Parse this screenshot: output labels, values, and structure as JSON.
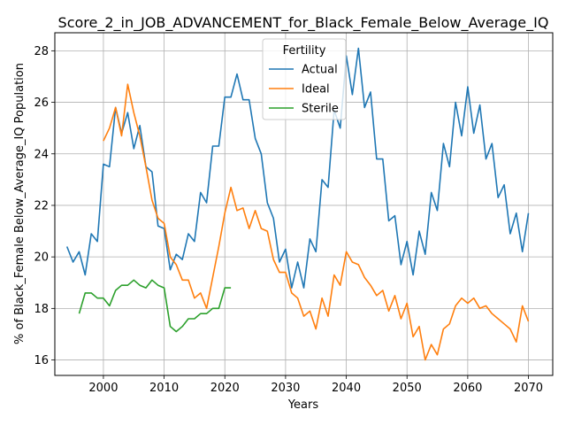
{
  "chart_data": {
    "type": "line",
    "title": "Score_2_in_JOB_ADVANCEMENT_for_Black_Female_Below_Average_IQ",
    "xlabel": "Years",
    "ylabel": "% of Black_Female Below_Average_IQ Population",
    "xlim": [
      1992,
      2074
    ],
    "ylim": [
      15.4,
      28.7
    ],
    "xticks": [
      2000,
      2010,
      2020,
      2030,
      2040,
      2050,
      2060,
      2070
    ],
    "yticks": [
      16,
      18,
      20,
      22,
      24,
      26,
      28
    ],
    "grid": true,
    "legend": {
      "title": "Fertility",
      "placement": "top-center"
    },
    "series": [
      {
        "name": "Actual",
        "color": "#1f77b4",
        "x": [
          1994,
          1995,
          1996,
          1997,
          1998,
          1999,
          2000,
          2001,
          2002,
          2003,
          2004,
          2005,
          2006,
          2007,
          2008,
          2009,
          2010,
          2011,
          2012,
          2013,
          2014,
          2015,
          2016,
          2017,
          2018,
          2019,
          2020,
          2021,
          2022,
          2023,
          2024,
          2025,
          2026,
          2027,
          2028,
          2029,
          2030,
          2031,
          2032,
          2033,
          2034,
          2035,
          2036,
          2037,
          2038,
          2039,
          2040,
          2041,
          2042,
          2043,
          2044,
          2045,
          2046,
          2047,
          2048,
          2049,
          2050,
          2051,
          2052,
          2053,
          2054,
          2055,
          2056,
          2057,
          2058,
          2059,
          2060,
          2061,
          2062,
          2063,
          2064,
          2065,
          2066,
          2067,
          2068,
          2069,
          2070
        ],
        "values": [
          20.4,
          19.8,
          20.2,
          19.3,
          20.9,
          20.6,
          23.6,
          23.5,
          25.8,
          24.8,
          25.6,
          24.2,
          25.1,
          23.5,
          23.3,
          21.2,
          21.1,
          19.5,
          20.1,
          19.9,
          20.9,
          20.6,
          22.5,
          22.1,
          24.3,
          24.3,
          26.2,
          26.2,
          27.1,
          26.1,
          26.1,
          24.6,
          24.0,
          22.1,
          21.5,
          19.8,
          20.3,
          18.8,
          19.8,
          18.8,
          20.7,
          20.2,
          23.0,
          22.7,
          25.7,
          25.0,
          27.8,
          26.3,
          28.1,
          25.8,
          26.4,
          23.8,
          23.8,
          21.4,
          21.6,
          19.7,
          20.6,
          19.3,
          21.0,
          20.1,
          22.5,
          21.8,
          24.4,
          23.5,
          26.0,
          24.7,
          26.6,
          24.8,
          25.9,
          23.8,
          24.4,
          22.3,
          22.8,
          20.9,
          21.7,
          20.2,
          21.7
        ]
      },
      {
        "name": "Ideal",
        "color": "#ff7f0e",
        "x": [
          2000,
          2001,
          2002,
          2003,
          2004,
          2005,
          2006,
          2007,
          2008,
          2009,
          2010,
          2011,
          2012,
          2013,
          2014,
          2015,
          2016,
          2017,
          2018,
          2019,
          2020,
          2021,
          2022,
          2023,
          2024,
          2025,
          2026,
          2027,
          2028,
          2029,
          2030,
          2031,
          2032,
          2033,
          2034,
          2035,
          2036,
          2037,
          2038,
          2039,
          2040,
          2041,
          2042,
          2043,
          2044,
          2045,
          2046,
          2047,
          2048,
          2049,
          2050,
          2051,
          2052,
          2053,
          2054,
          2055,
          2056,
          2057,
          2058,
          2059,
          2060,
          2061,
          2062,
          2063,
          2064,
          2065,
          2066,
          2067,
          2068,
          2069,
          2070
        ],
        "values": [
          24.5,
          25.0,
          25.8,
          24.7,
          26.7,
          25.6,
          24.7,
          23.5,
          22.2,
          21.5,
          21.3,
          20.0,
          19.7,
          19.1,
          19.1,
          18.4,
          18.6,
          18.0,
          19.2,
          20.4,
          21.7,
          22.7,
          21.8,
          21.9,
          21.1,
          21.8,
          21.1,
          21.0,
          19.9,
          19.4,
          19.4,
          18.6,
          18.4,
          17.7,
          17.9,
          17.2,
          18.4,
          17.7,
          19.3,
          18.9,
          20.2,
          19.8,
          19.7,
          19.2,
          18.9,
          18.5,
          18.7,
          17.9,
          18.5,
          17.6,
          18.2,
          16.9,
          17.3,
          16.0,
          16.6,
          16.2,
          17.2,
          17.4,
          18.1,
          18.4,
          18.2,
          18.4,
          18.0,
          18.1,
          17.8,
          17.6,
          17.4,
          17.2,
          16.7,
          18.1,
          17.5
        ]
      },
      {
        "name": "Sterile",
        "color": "#2ca02c",
        "x": [
          1996,
          1997,
          1998,
          1999,
          2000,
          2001,
          2002,
          2003,
          2004,
          2005,
          2006,
          2007,
          2008,
          2009,
          2010,
          2011,
          2012,
          2013,
          2014,
          2015,
          2016,
          2017,
          2018,
          2019,
          2020,
          2021
        ],
        "values": [
          17.8,
          18.6,
          18.6,
          18.4,
          18.4,
          18.1,
          18.7,
          18.9,
          18.9,
          19.1,
          18.9,
          18.8,
          19.1,
          18.9,
          18.8,
          17.3,
          17.1,
          17.3,
          17.6,
          17.6,
          17.8,
          17.8,
          18.0,
          18.0,
          18.8,
          18.8
        ]
      }
    ]
  }
}
